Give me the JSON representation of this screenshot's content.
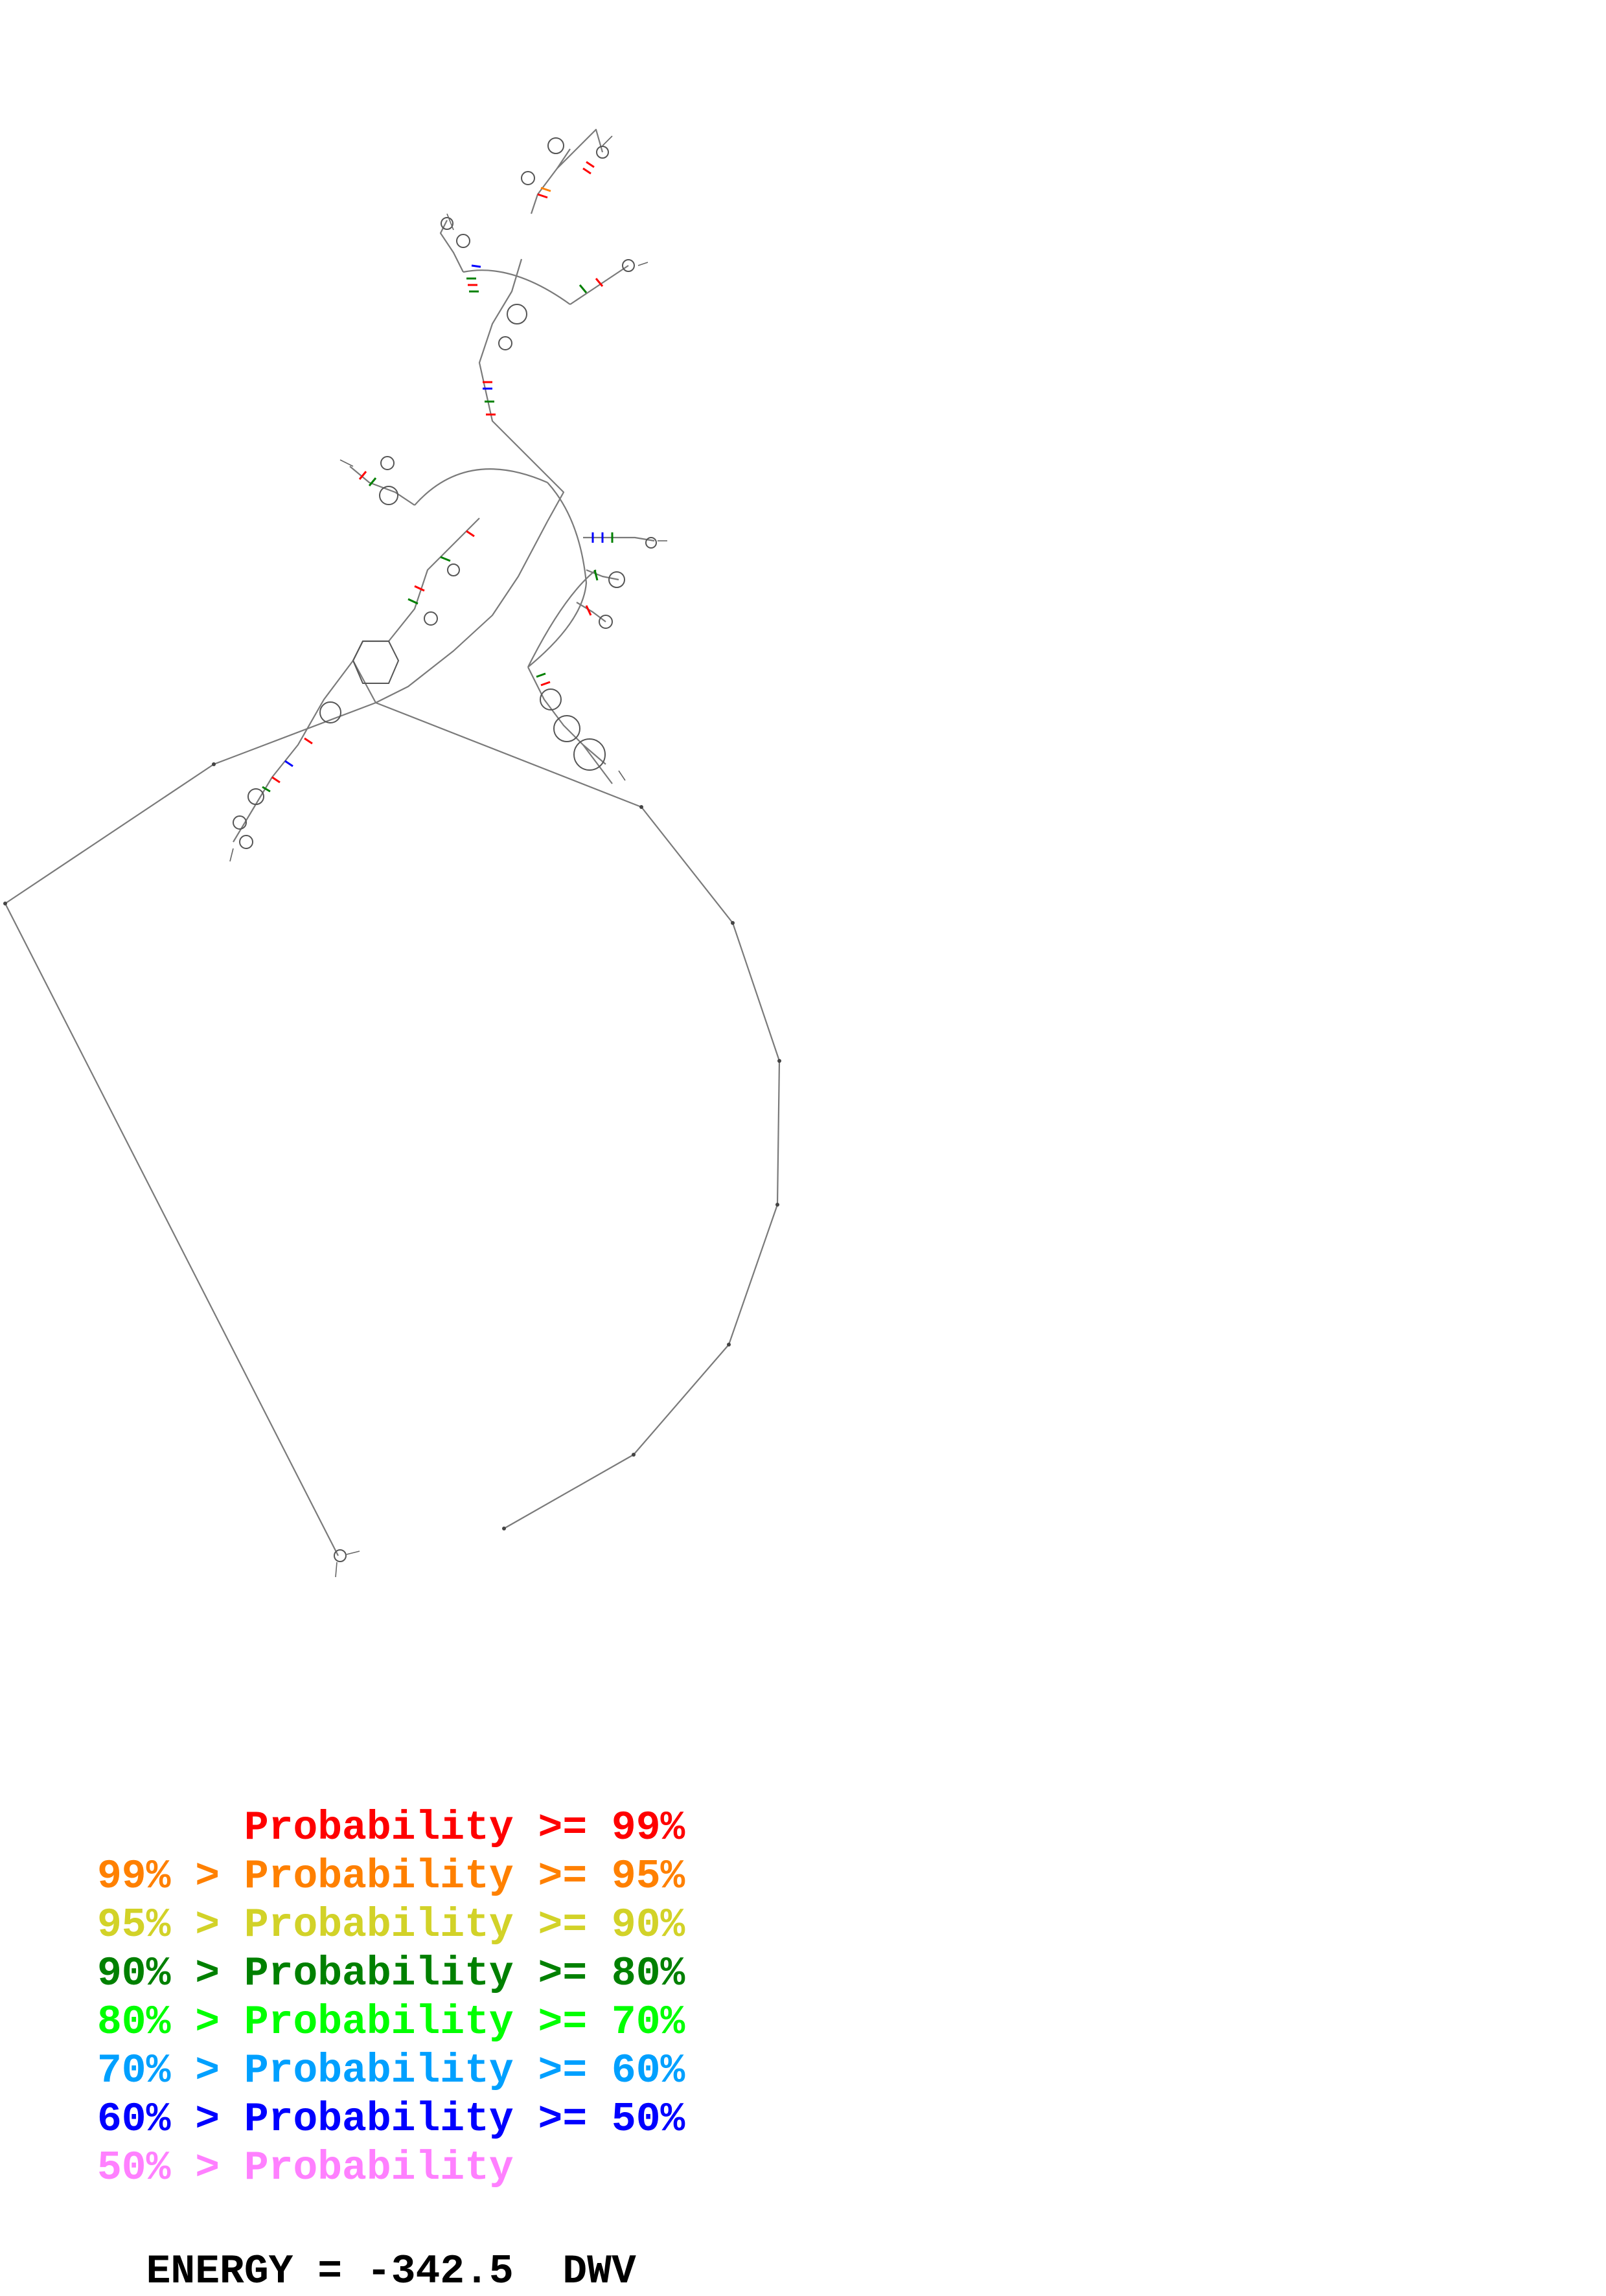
{
  "legend": [
    {
      "prefix": "",
      "label": "Probability",
      "suffix": ">= 99%",
      "color": "#ff0000"
    },
    {
      "prefix": "99% > ",
      "label": "Probability",
      "suffix": ">= 95%",
      "color": "#ff8000"
    },
    {
      "prefix": "95% > ",
      "label": "Probability",
      "suffix": ">= 90%",
      "color": "#d2d228"
    },
    {
      "prefix": "90% > ",
      "label": "Probability",
      "suffix": ">= 80%",
      "color": "#008000"
    },
    {
      "prefix": "80% > ",
      "label": "Probability",
      "suffix": ">= 70%",
      "color": "#00ff00"
    },
    {
      "prefix": "70% > ",
      "label": "Probability",
      "suffix": ">= 60%",
      "color": "#00a0ff"
    },
    {
      "prefix": "60% > ",
      "label": "Probability",
      "suffix": ">= 50%",
      "color": "#0000ff"
    },
    {
      "prefix": "50% > ",
      "label": "Probability",
      "suffix": "",
      "color": "#ff80ff"
    }
  ],
  "energy": {
    "label": "ENERGY",
    "value": "-342.5",
    "name": "DWV"
  }
}
